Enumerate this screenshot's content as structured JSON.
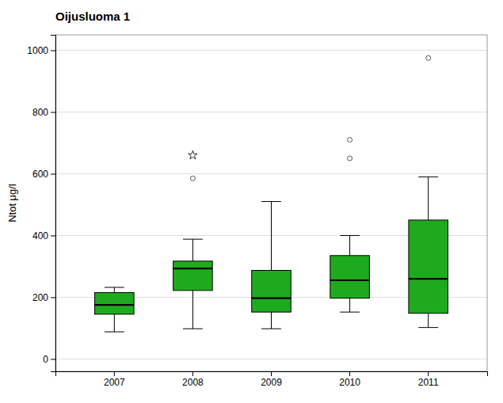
{
  "chart_data": {
    "type": "box",
    "title": "Oijusluoma 1",
    "ylabel": "Ntot μg/l",
    "categories": [
      "2007",
      "2008",
      "2009",
      "2010",
      "2011"
    ],
    "boxes": [
      {
        "q1": 145,
        "median": 175,
        "q3": 215,
        "whislo": 88,
        "whishi": 232,
        "fliers": [],
        "extreme_fliers": []
      },
      {
        "q1": 222,
        "median": 293,
        "q3": 317,
        "whislo": 98,
        "whishi": 388,
        "fliers": [
          585
        ],
        "extreme_fliers": [
          660
        ]
      },
      {
        "q1": 152,
        "median": 197,
        "q3": 287,
        "whislo": 98,
        "whishi": 510,
        "fliers": [],
        "extreme_fliers": []
      },
      {
        "q1": 197,
        "median": 255,
        "q3": 335,
        "whislo": 152,
        "whishi": 400,
        "fliers": [
          650,
          710
        ],
        "extreme_fliers": []
      },
      {
        "q1": 148,
        "median": 260,
        "q3": 450,
        "whislo": 102,
        "whishi": 590,
        "fliers": [
          975
        ],
        "extreme_fliers": []
      }
    ],
    "color": "#1eaa1e",
    "ylim": [
      -40,
      1050
    ],
    "yticks": [
      0,
      200,
      400,
      600,
      800,
      1000
    ],
    "grid": true
  }
}
